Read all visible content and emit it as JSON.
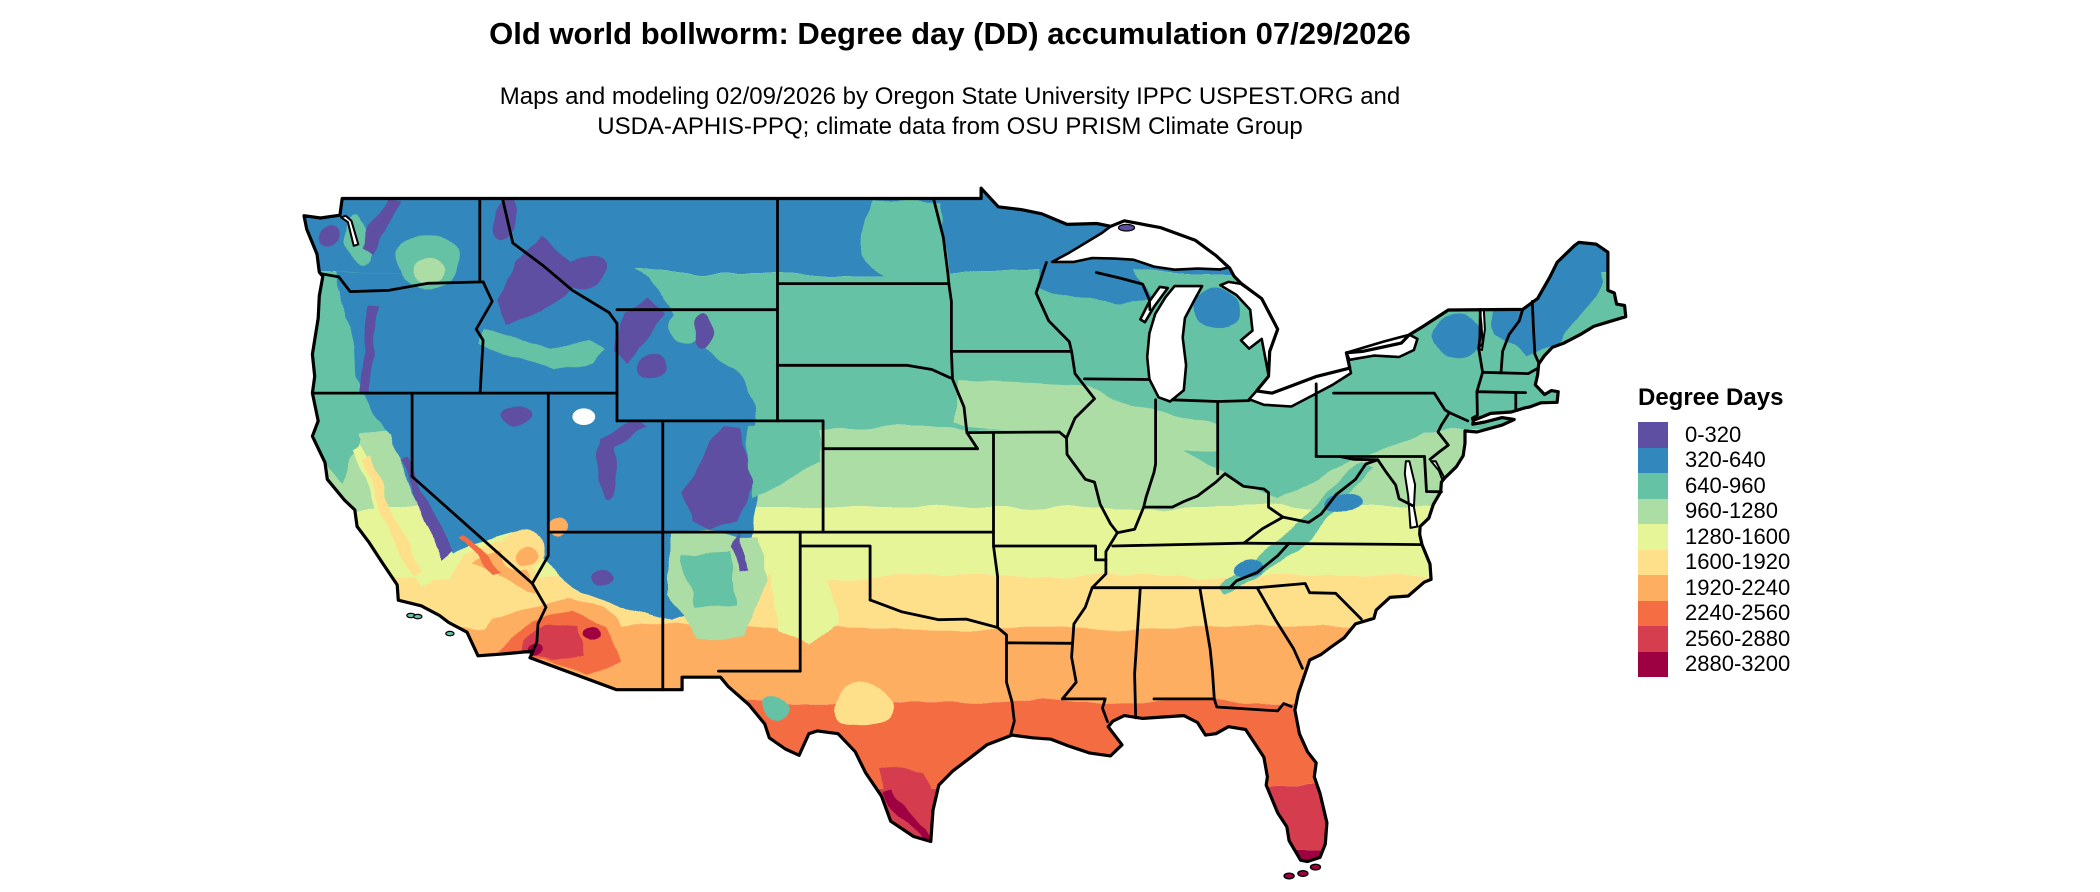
{
  "header": {
    "title": "Old world bollworm: Degree day (DD) accumulation 07/29/2026",
    "subtitle_lines": [
      "Maps and modeling 02/09/2026 by Oregon State University IPPC USPEST.ORG and",
      "USDA-APHIS-PPQ; climate data from OSU PRISM Climate Group"
    ]
  },
  "legend": {
    "title": "Degree Days",
    "entries": [
      {
        "label": "0-320",
        "color": "#5e4fa2"
      },
      {
        "label": "320-640",
        "color": "#3288bd"
      },
      {
        "label": "640-960",
        "color": "#66c2a5"
      },
      {
        "label": "960-1280",
        "color": "#abdda4"
      },
      {
        "label": "1280-1600",
        "color": "#e6f598"
      },
      {
        "label": "1600-1920",
        "color": "#fee08b"
      },
      {
        "label": "1920-2240",
        "color": "#fdae61"
      },
      {
        "label": "2240-2560",
        "color": "#f46d43"
      },
      {
        "label": "2560-2880",
        "color": "#d53e4f"
      },
      {
        "label": "2880-3200",
        "color": "#9e0142"
      }
    ]
  },
  "map": {
    "region": "Contiguous United States with state boundaries",
    "kind": "degree-day accumulation raster",
    "water_color": "#ffffff",
    "boundary_color": "#000000"
  },
  "chart_data": {
    "type": "heatmap",
    "title": "Old world bollworm: Degree day (DD) accumulation 07/29/2026",
    "legend_title": "Degree Days",
    "classes": [
      "0-320",
      "320-640",
      "640-960",
      "960-1280",
      "1280-1600",
      "1600-1920",
      "1920-2240",
      "2240-2560",
      "2560-2880",
      "2880-3200"
    ],
    "palette": [
      "#5e4fa2",
      "#3288bd",
      "#66c2a5",
      "#abdda4",
      "#e6f598",
      "#fee08b",
      "#fdae61",
      "#f46d43",
      "#d53e4f",
      "#9e0142"
    ],
    "legend_position": "right",
    "notes": "Degree days increase from north (0-640) to the Gulf Coast, south Texas, south Florida and the desert Southwest (2240-3200); high-elevation Rockies/Sierra/Cascades show 0-320."
  }
}
